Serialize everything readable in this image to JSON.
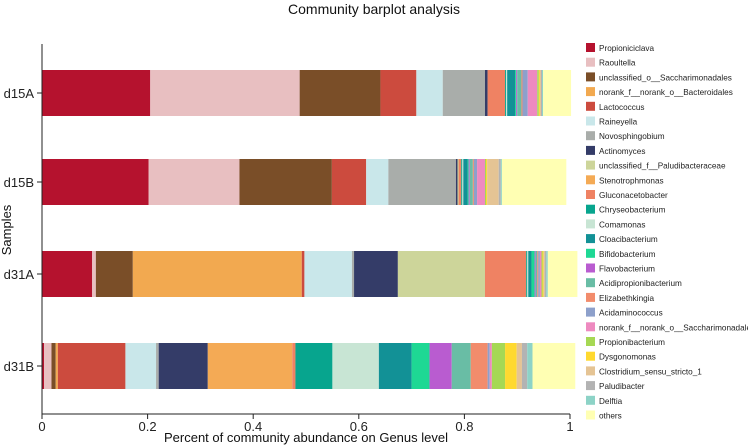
{
  "chart_data": {
    "type": "bar",
    "orientation": "horizontal",
    "stacked": true,
    "title": "Community barplot analysis",
    "xlabel": "Percent of community abundance on Genus level",
    "ylabel": "Samples",
    "xlim": [
      0,
      1
    ],
    "xticks": [
      0,
      0.2,
      0.4,
      0.6,
      0.8,
      1
    ],
    "xtick_labels": [
      "0",
      "0.2",
      "0.4",
      "0.6",
      "0.8",
      "1"
    ],
    "categories": [
      "d15A",
      "d15B",
      "d31A",
      "d31B"
    ],
    "legend_position": "right",
    "series": [
      {
        "name": "Propioniciclava",
        "color": "#B5122E",
        "values": [
          0.205,
          0.202,
          0.095,
          0.004
        ]
      },
      {
        "name": "Raoultella",
        "color": "#E8BFC1",
        "values": [
          0.283,
          0.172,
          0.007,
          0.014
        ]
      },
      {
        "name": "unclassified_o__Saccharimonadales",
        "color": "#7A4E28",
        "values": [
          0.153,
          0.175,
          0.07,
          0.008
        ]
      },
      {
        "name": "norank_f__norank_o__Bacteroidales",
        "color": "#F2A950",
        "values": [
          0.0,
          0.0,
          0.32,
          0.004
        ]
      },
      {
        "name": "Lactococcus",
        "color": "#CC4B3E",
        "values": [
          0.068,
          0.065,
          0.005,
          0.128
        ]
      },
      {
        "name": "Raineyella",
        "color": "#C9E7EA",
        "values": [
          0.05,
          0.042,
          0.09,
          0.058
        ]
      },
      {
        "name": "Novosphingobium",
        "color": "#A9ADAA",
        "values": [
          0.08,
          0.128,
          0.004,
          0.005
        ]
      },
      {
        "name": "Actinomyces",
        "color": "#343C68",
        "values": [
          0.005,
          0.003,
          0.083,
          0.093
        ]
      },
      {
        "name": "unclassified_f__Paludibacteraceae",
        "color": "#CDD59A",
        "values": [
          0.0,
          0.002,
          0.165,
          0.0
        ]
      },
      {
        "name": "Stenotrophmonas",
        "color": "#F4AA55",
        "values": [
          0.0,
          0.0,
          0.0,
          0.16
        ]
      },
      {
        "name": "Gluconacetobacter",
        "color": "#EF8263",
        "values": [
          0.033,
          0.005,
          0.078,
          0.006
        ]
      },
      {
        "name": "Chryseobacterium",
        "color": "#07A58E",
        "values": [
          0.002,
          0.002,
          0.002,
          0.07
        ]
      },
      {
        "name": "Comamonas",
        "color": "#C8E5D4",
        "values": [
          0.002,
          0.002,
          0.002,
          0.088
        ]
      },
      {
        "name": "Cloacibacterium",
        "color": "#129196",
        "values": [
          0.015,
          0.008,
          0.006,
          0.062
        ]
      },
      {
        "name": "Bifidobacterium",
        "color": "#1ED894",
        "values": [
          0.002,
          0.002,
          0.006,
          0.034
        ]
      },
      {
        "name": "Flavobacterium",
        "color": "#B95CD0",
        "values": [
          0.002,
          0.002,
          0.002,
          0.042
        ]
      },
      {
        "name": "Acidipropionibacterium",
        "color": "#69BDA5",
        "values": [
          0.008,
          0.006,
          0.003,
          0.036
        ]
      },
      {
        "name": "Elizabethkingia",
        "color": "#F28C6C",
        "values": [
          0.002,
          0.002,
          0.002,
          0.032
        ]
      },
      {
        "name": "Acidaminococcus",
        "color": "#8DA0CB",
        "values": [
          0.01,
          0.006,
          0.003,
          0.004
        ]
      },
      {
        "name": "norank_f__norank_o__Saccharimonadales",
        "color": "#EE8AC0",
        "values": [
          0.018,
          0.015,
          0.003,
          0.004
        ]
      },
      {
        "name": "Propionibacterium",
        "color": "#A6D854",
        "values": [
          0.003,
          0.002,
          0.002,
          0.025
        ]
      },
      {
        "name": "Dysgonomonas",
        "color": "#FFD92F",
        "values": [
          0.002,
          0.002,
          0.002,
          0.022
        ]
      },
      {
        "name": "Clostridium_sensu_stricto_1",
        "color": "#E5C494",
        "values": [
          0.002,
          0.022,
          0.002,
          0.01
        ]
      },
      {
        "name": "Paludibacter",
        "color": "#B3B3B3",
        "values": [
          0.002,
          0.004,
          0.003,
          0.01
        ]
      },
      {
        "name": "Delftia",
        "color": "#8DD3C7",
        "values": [
          0.002,
          0.002,
          0.003,
          0.01
        ]
      },
      {
        "name": "others",
        "color": "#FFFFB3",
        "values": [
          0.053,
          0.122,
          0.056,
          0.081
        ]
      }
    ]
  }
}
